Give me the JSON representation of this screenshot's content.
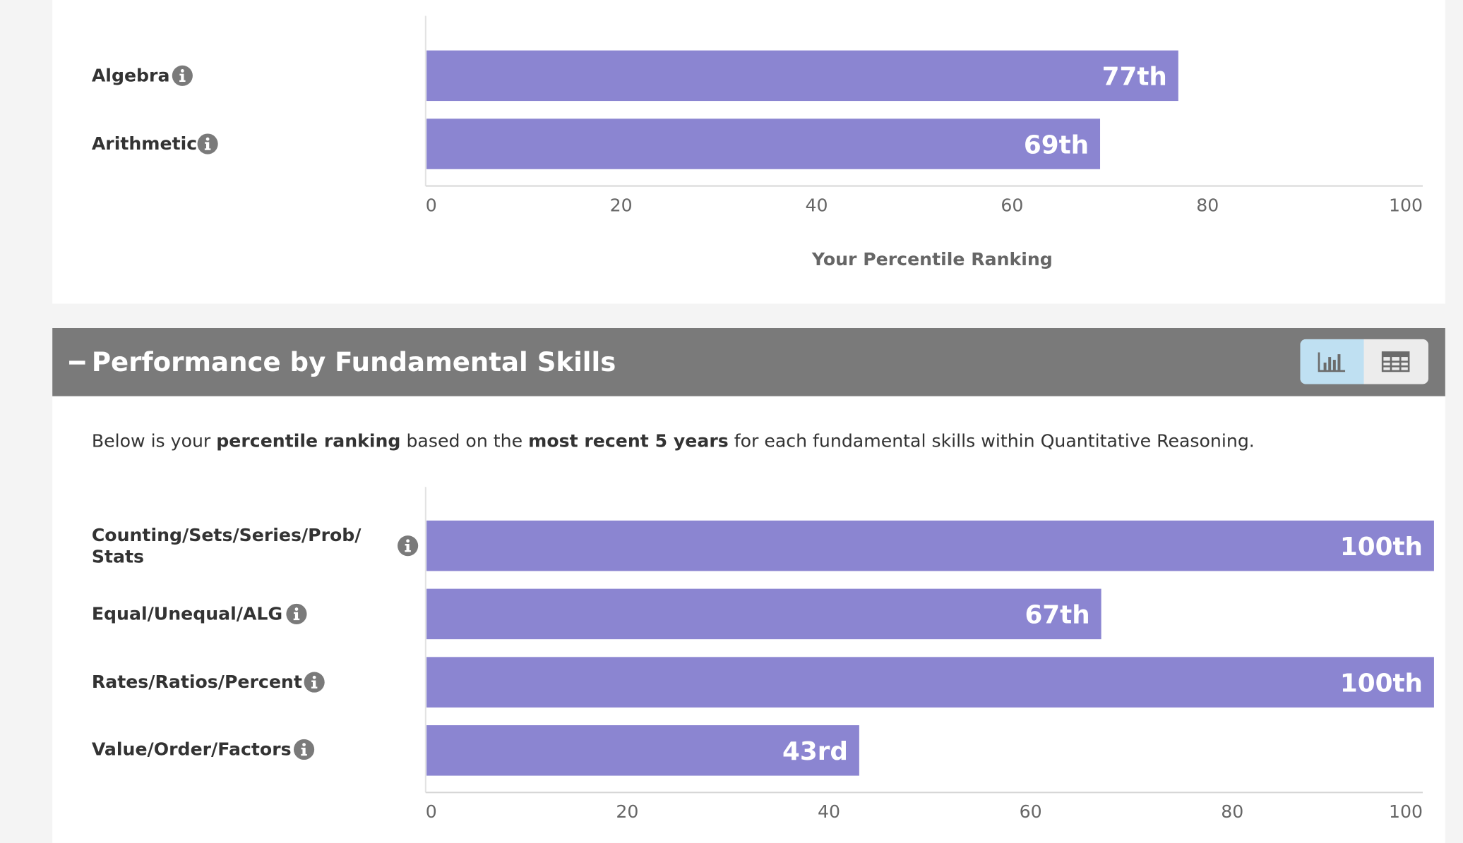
{
  "chart_data": [
    {
      "type": "bar",
      "orientation": "horizontal",
      "categories": [
        "Algebra",
        "Arithmetic"
      ],
      "values": [
        77,
        69
      ],
      "value_labels": [
        "77th",
        "69th"
      ],
      "xlabel": "Your Percentile Ranking",
      "xlim": [
        0,
        100
      ],
      "x_ticks": [
        "0",
        "20",
        "40",
        "60",
        "80",
        "100"
      ],
      "bar_color": "#8b85d1",
      "grid": false
    },
    {
      "type": "bar",
      "orientation": "horizontal",
      "categories": [
        "Counting/Sets/Series/Prob/ Stats",
        "Equal/Unequal/ALG",
        "Rates/Ratios/Percent",
        "Value/Order/Factors"
      ],
      "values": [
        100,
        67,
        100,
        43
      ],
      "value_labels": [
        "100th",
        "67th",
        "100th",
        "43rd"
      ],
      "xlim": [
        0,
        100
      ],
      "x_ticks": [
        "0",
        "20",
        "40",
        "60",
        "80",
        "100"
      ],
      "bar_color": "#8b85d1",
      "grid": false
    }
  ],
  "section": {
    "title": "Performance by Fundamental Skills",
    "collapse_symbol": "−",
    "view_toggle": {
      "chart_icon": "bar-chart-icon",
      "table_icon": "table-grid-icon",
      "active": "chart"
    },
    "description": {
      "p1": "Below is your ",
      "b1": "percentile ranking",
      "p2": " based on the ",
      "b2": "most recent 5 years",
      "p3": " for each fundamental skills within Quantitative Reasoning."
    }
  },
  "colors": {
    "header_bg": "#7a7a7a",
    "bar": "#8b85d1",
    "toggle_active": "#bfe0f2",
    "page_bg": "#f4f4f4"
  }
}
